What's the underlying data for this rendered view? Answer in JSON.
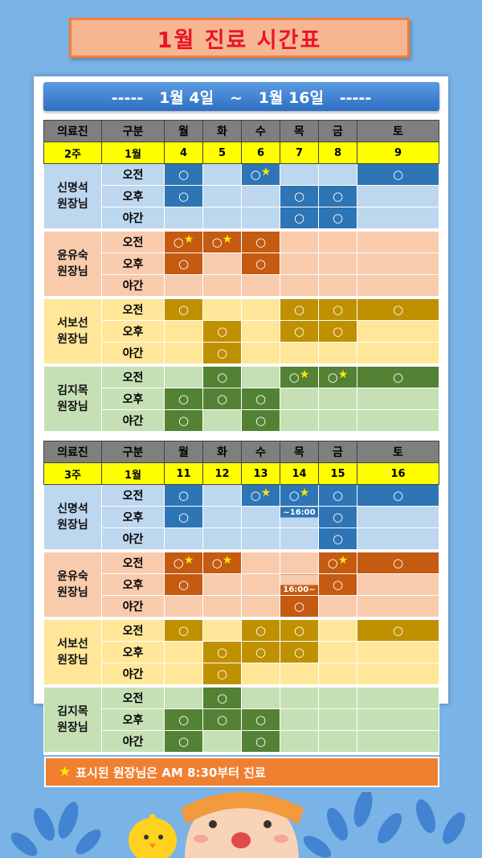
{
  "title": "1월 진료 시간표",
  "range": "-----   1월 4일   ~   1월 16일   -----",
  "header": {
    "doctor": "의료진",
    "kind": "구분",
    "days": [
      "월",
      "화",
      "수",
      "목",
      "금",
      "토"
    ]
  },
  "legend": {
    "star": "★",
    "text": "표시된 원장님은 AM 8:30부터 진료"
  },
  "weeks": [
    {
      "week": "2주",
      "month": "1월",
      "dates": [
        "4",
        "5",
        "6",
        "7",
        "8",
        "9"
      ],
      "doctors": [
        {
          "name": [
            "신명석",
            "원장님"
          ],
          "theme": "blue",
          "rows": [
            {
              "slot": "오전",
              "cells": [
                {
                  "m": "○"
                },
                {},
                {
                  "m": "○",
                  "s": "★"
                },
                {},
                {},
                {
                  "m": "○"
                }
              ]
            },
            {
              "slot": "오후",
              "cells": [
                {
                  "m": "○"
                },
                {},
                {},
                {
                  "m": "○"
                },
                {
                  "m": "○"
                },
                {}
              ]
            },
            {
              "slot": "야간",
              "cells": [
                {},
                {},
                {},
                {
                  "m": "○"
                },
                {
                  "m": "○"
                },
                {}
              ]
            }
          ]
        },
        {
          "name": [
            "윤유숙",
            "원장님"
          ],
          "theme": "orange",
          "rows": [
            {
              "slot": "오전",
              "cells": [
                {
                  "m": "○",
                  "s": "★"
                },
                {
                  "m": "○",
                  "s": "★"
                },
                {
                  "m": "○"
                },
                {},
                {},
                {}
              ]
            },
            {
              "slot": "오후",
              "cells": [
                {
                  "m": "○"
                },
                {},
                {
                  "m": "○"
                },
                {},
                {},
                {}
              ]
            },
            {
              "slot": "야간",
              "cells": [
                {},
                {},
                {},
                {},
                {},
                {}
              ]
            }
          ]
        },
        {
          "name": [
            "서보선",
            "원장님"
          ],
          "theme": "gold",
          "rows": [
            {
              "slot": "오전",
              "cells": [
                {
                  "m": "○"
                },
                {},
                {},
                {
                  "m": "○"
                },
                {
                  "m": "○"
                },
                {
                  "m": "○"
                }
              ]
            },
            {
              "slot": "오후",
              "cells": [
                {},
                {
                  "m": "○"
                },
                {},
                {
                  "m": "○"
                },
                {
                  "m": "○"
                },
                {}
              ]
            },
            {
              "slot": "야간",
              "cells": [
                {},
                {
                  "m": "○"
                },
                {},
                {},
                {},
                {}
              ]
            }
          ]
        },
        {
          "name": [
            "김지목",
            "원장님"
          ],
          "theme": "green",
          "rows": [
            {
              "slot": "오전",
              "cells": [
                {},
                {
                  "m": "○"
                },
                {},
                {
                  "m": "○",
                  "s": "★"
                },
                {
                  "m": "○",
                  "s": "★"
                },
                {
                  "m": "○"
                }
              ]
            },
            {
              "slot": "오후",
              "cells": [
                {
                  "m": "○"
                },
                {
                  "m": "○"
                },
                {
                  "m": "○"
                },
                {},
                {},
                {}
              ]
            },
            {
              "slot": "야간",
              "cells": [
                {
                  "m": "○"
                },
                {},
                {
                  "m": "○"
                },
                {},
                {},
                {}
              ]
            }
          ]
        }
      ]
    },
    {
      "week": "3주",
      "month": "1월",
      "dates": [
        "11",
        "12",
        "13",
        "14",
        "15",
        "16"
      ],
      "doctors": [
        {
          "name": [
            "신명석",
            "원장님"
          ],
          "theme": "blue",
          "rows": [
            {
              "slot": "오전",
              "cells": [
                {
                  "m": "○"
                },
                {},
                {
                  "m": "○",
                  "s": "★"
                },
                {
                  "m": "○",
                  "s": "★"
                },
                {
                  "m": "○"
                },
                {
                  "m": "○"
                }
              ]
            },
            {
              "slot": "오후",
              "cells": [
                {
                  "m": "○"
                },
                {},
                {},
                {
                  "n": "~16:00",
                  "half": "top"
                },
                {
                  "m": "○"
                },
                {}
              ]
            },
            {
              "slot": "야간",
              "cells": [
                {},
                {},
                {},
                {},
                {
                  "m": "○"
                },
                {}
              ]
            }
          ]
        },
        {
          "name": [
            "윤유숙",
            "원장님"
          ],
          "theme": "orange",
          "rows": [
            {
              "slot": "오전",
              "cells": [
                {
                  "m": "○",
                  "s": "★"
                },
                {
                  "m": "○",
                  "s": "★"
                },
                {},
                {},
                {
                  "m": "○",
                  "s": "★"
                },
                {
                  "m": "○"
                }
              ]
            },
            {
              "slot": "오후",
              "cells": [
                {
                  "m": "○"
                },
                {},
                {},
                {
                  "n": "16:00~",
                  "half": "bottom"
                },
                {
                  "m": "○"
                },
                {}
              ]
            },
            {
              "slot": "야간",
              "cells": [
                {},
                {},
                {},
                {
                  "m": "○"
                },
                {},
                {}
              ]
            }
          ]
        },
        {
          "name": [
            "서보선",
            "원장님"
          ],
          "theme": "gold",
          "rows": [
            {
              "slot": "오전",
              "cells": [
                {
                  "m": "○"
                },
                {},
                {
                  "m": "○"
                },
                {
                  "m": "○"
                },
                {},
                {
                  "m": "○"
                }
              ]
            },
            {
              "slot": "오후",
              "cells": [
                {},
                {
                  "m": "○"
                },
                {
                  "m": "○"
                },
                {
                  "m": "○"
                },
                {},
                {}
              ]
            },
            {
              "slot": "야간",
              "cells": [
                {},
                {
                  "m": "○"
                },
                {},
                {},
                {},
                {}
              ]
            }
          ]
        },
        {
          "name": [
            "김지목",
            "원장님"
          ],
          "theme": "green",
          "rows": [
            {
              "slot": "오전",
              "cells": [
                {},
                {
                  "m": "○"
                },
                {},
                {},
                {},
                {}
              ]
            },
            {
              "slot": "오후",
              "cells": [
                {
                  "m": "○"
                },
                {
                  "m": "○"
                },
                {
                  "m": "○"
                },
                {},
                {},
                {}
              ]
            },
            {
              "slot": "야간",
              "cells": [
                {
                  "m": "○"
                },
                {},
                {
                  "m": "○"
                },
                {},
                {},
                {}
              ]
            }
          ]
        }
      ]
    }
  ],
  "colors": {
    "blue": {
      "doc": "#bdd7ee",
      "empty": "#bdd7ee",
      "filled": "#2e75b6"
    },
    "orange": {
      "doc": "#f8cbad",
      "empty": "#f8cbad",
      "filled": "#c55a11"
    },
    "gold": {
      "doc": "#ffe699",
      "empty": "#ffe699",
      "filled": "#bf9000"
    },
    "green": {
      "doc": "#c5e0b4",
      "empty": "#c5e0b4",
      "filled": "#548235"
    }
  }
}
